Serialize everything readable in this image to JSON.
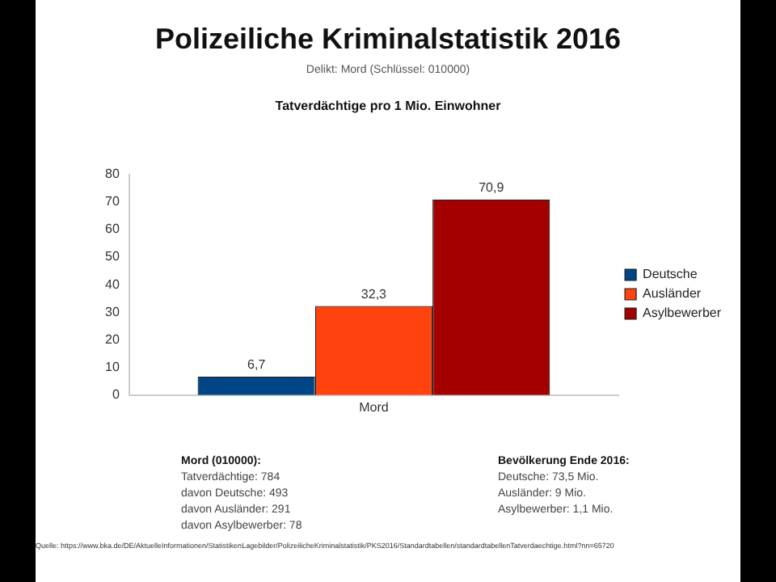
{
  "chart_data": {
    "type": "bar",
    "title": "Polizeiliche Kriminalstatistik 2016",
    "subtitle": "Delikt: Mord (Schlüssel: 010000)",
    "categories": [
      "Mord"
    ],
    "series": [
      {
        "name": "Deutsche",
        "color": "#004586",
        "values": [
          6.7
        ],
        "value_labels": [
          "6,7"
        ]
      },
      {
        "name": "Ausländer",
        "color": "#ff420e",
        "values": [
          32.3
        ],
        "value_labels": [
          "32,3"
        ]
      },
      {
        "name": "Asylbewerber",
        "color": "#a50000",
        "values": [
          70.9
        ],
        "value_labels": [
          "70,9"
        ]
      }
    ],
    "ylim": [
      0,
      80
    ],
    "yticks": [
      0,
      10,
      20,
      30,
      40,
      50,
      60,
      70,
      80
    ],
    "grid": false,
    "legend": "right",
    "annotations": [
      "Tatverdächtige pro 1 Mio. Einwohner",
      "Mord (010000):\nTatverdächtige: 784\ndavon Deutsche: 493\ndavon Ausländer: 291\ndavon Asylbewerber: 78",
      "Bevölkerung Ende 2016:\nDeutsche: 73,5 Mio.\nAusländer: 9 Mio.\nAsylbewerber: 1,1 Mio.",
      "Quelle: https://www.bka.de/DE/AktuelleInformationen/StatistikenLagebilder/PolizeilicheKriminalstatistik/PKS2016/Standardtabellen/standardtabellenTatverdaechtige.html?nn=65720"
    ]
  }
}
